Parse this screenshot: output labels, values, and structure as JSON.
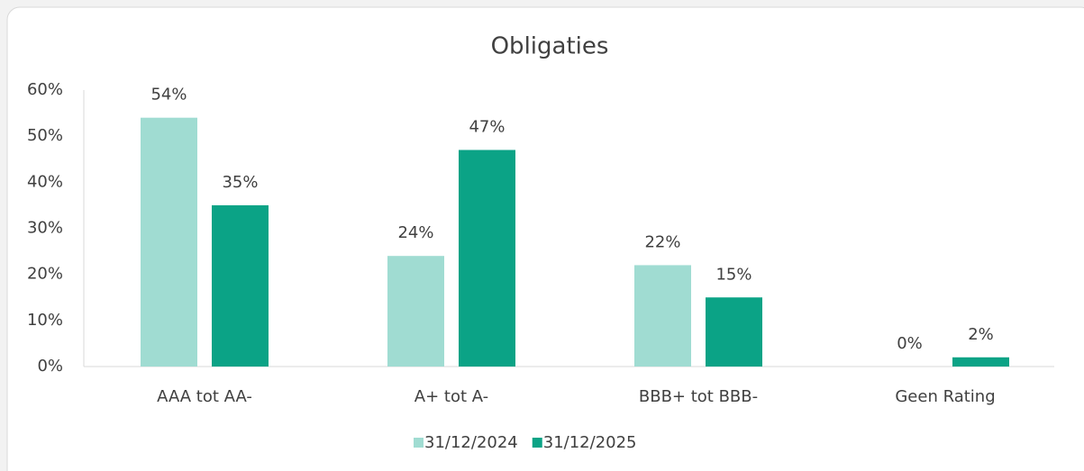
{
  "chart_data": {
    "type": "bar",
    "title": "Obligaties",
    "categories": [
      "AAA tot AA-",
      "A+ tot A-",
      "BBB+ tot BBB-",
      "Geen Rating"
    ],
    "series": [
      {
        "name": "31/12/2024",
        "color": "#a0dcd2",
        "values": [
          54,
          24,
          22,
          0
        ],
        "value_labels": [
          "54%",
          "24%",
          "22%",
          "0%"
        ]
      },
      {
        "name": "31/12/2025",
        "color": "#0ba386",
        "values": [
          35,
          47,
          15,
          2
        ],
        "value_labels": [
          "35%",
          "47%",
          "15%",
          "2%"
        ]
      }
    ],
    "ylim": [
      0,
      60
    ],
    "yticks": [
      {
        "value": 0,
        "label": "0%"
      },
      {
        "value": 10,
        "label": "10%"
      },
      {
        "value": 20,
        "label": "20%"
      },
      {
        "value": 30,
        "label": "30%"
      },
      {
        "value": 40,
        "label": "40%"
      },
      {
        "value": 50,
        "label": "50%"
      },
      {
        "value": 60,
        "label": "60%"
      }
    ],
    "grid": false,
    "legend": "bottom"
  }
}
